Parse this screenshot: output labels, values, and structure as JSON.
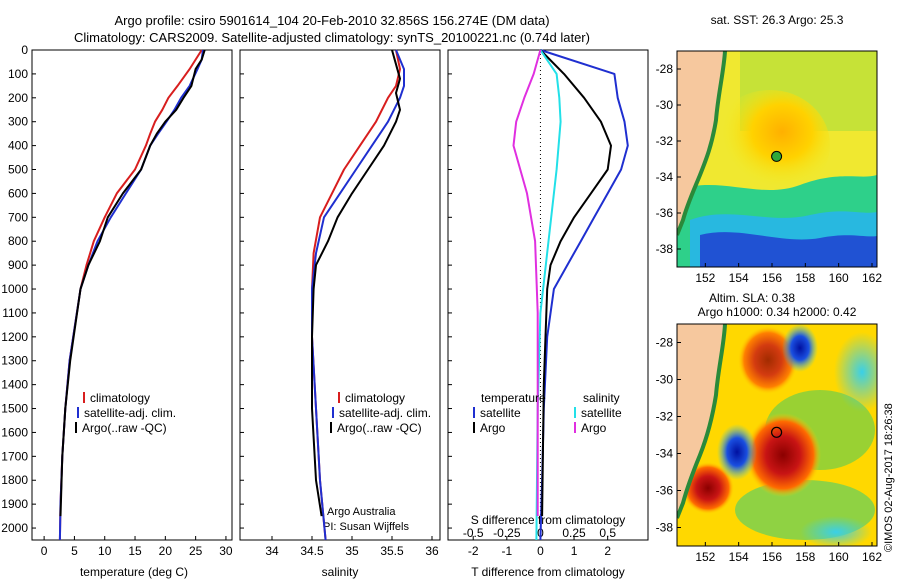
{
  "header": {
    "line1": "Argo profile: csiro 5901614_104 20-Feb-2010 32.856S 156.274E (DM data)",
    "line2": "Climatology: CARS2009. Satellite-adjusted climatology: synTS_20100221.nc (0.74d later)"
  },
  "colors": {
    "climatology": "#d81e1e",
    "satellite": "#1f2fd0",
    "argo": "#000000",
    "sal_satellite": "#22e0e8",
    "sal_argo": "#e02fe0",
    "land": "#f6c89e",
    "coast": "#2a8a3a"
  },
  "chart_data": [
    {
      "type": "line",
      "id": "temperature",
      "xlabel": "temperature (deg C)",
      "ylabel": "",
      "xlim": [
        -2,
        31
      ],
      "ylim": [
        2050,
        0
      ],
      "xticks": [
        "0",
        "5",
        "10",
        "15",
        "20",
        "25",
        "30"
      ],
      "yticks": [
        "0",
        "100",
        "200",
        "300",
        "400",
        "500",
        "600",
        "700",
        "800",
        "900",
        "1000",
        "1100",
        "1200",
        "1300",
        "1400",
        "1500",
        "1600",
        "1700",
        "1800",
        "1900",
        "2000"
      ],
      "legend": [
        "climatology",
        "satellite-adj. clim.",
        "Argo(..raw -QC)"
      ],
      "series": [
        {
          "name": "climatology",
          "x": [
            26.0,
            25.0,
            24.0,
            22.0,
            20.5,
            19.5,
            18.3,
            17.5,
            16.8,
            15.0,
            12.0,
            10.0,
            8.2,
            7.0,
            6.0,
            4.2,
            3.5,
            3.0,
            2.7,
            2.6
          ],
          "y": [
            0,
            40,
            80,
            150,
            200,
            250,
            300,
            350,
            400,
            500,
            600,
            700,
            800,
            900,
            1000,
            1300,
            1500,
            1700,
            1900,
            2050
          ]
        },
        {
          "name": "satellite-adj. clim.",
          "x": [
            26.2,
            26.0,
            25.3,
            24.0,
            22.6,
            21.5,
            20.2,
            18.8,
            17.5,
            16.0,
            13.5,
            11.0,
            8.8,
            7.3,
            6.0,
            4.2,
            3.5,
            3.0,
            2.7,
            2.6
          ],
          "y": [
            0,
            40,
            80,
            150,
            200,
            250,
            300,
            350,
            400,
            500,
            600,
            700,
            800,
            900,
            1000,
            1300,
            1500,
            1700,
            1900,
            2050
          ]
        },
        {
          "name": "Argo(..raw -QC)",
          "x": [
            26.5,
            26.0,
            25.0,
            24.3,
            23.0,
            21.8,
            20.0,
            18.6,
            17.5,
            16.0,
            13.0,
            10.5,
            9.2,
            7.3,
            6.0,
            4.3,
            3.5,
            3.0,
            2.7
          ],
          "y": [
            0,
            40,
            80,
            150,
            200,
            250,
            300,
            350,
            400,
            500,
            600,
            700,
            800,
            900,
            1000,
            1300,
            1500,
            1700,
            1950
          ]
        }
      ]
    },
    {
      "type": "line",
      "id": "salinity",
      "xlabel": "salinity",
      "xlim": [
        33.6,
        36.1
      ],
      "ylim": [
        2050,
        0
      ],
      "xticks": [
        "34",
        "34.5",
        "35",
        "35.5",
        "36"
      ],
      "legend": [
        "climatology",
        "satellite-adj. clim.",
        "Argo(..raw -QC)"
      ],
      "annotation": [
        "Argo Australia",
        "PI: Susan Wijffels"
      ],
      "series": [
        {
          "name": "climatology",
          "x": [
            35.55,
            35.6,
            35.55,
            35.45,
            35.3,
            35.1,
            34.9,
            34.75,
            34.6,
            34.52,
            34.5,
            34.5,
            34.55,
            34.6,
            34.67
          ],
          "y": [
            0,
            80,
            150,
            200,
            300,
            400,
            500,
            600,
            700,
            850,
            1000,
            1200,
            1500,
            1800,
            2050
          ]
        },
        {
          "name": "satellite-adj. clim.",
          "x": [
            35.55,
            35.65,
            35.65,
            35.6,
            35.45,
            35.25,
            35.05,
            34.85,
            34.65,
            34.55,
            34.5,
            34.5,
            34.55,
            34.6,
            34.67
          ],
          "y": [
            0,
            80,
            150,
            200,
            300,
            400,
            500,
            600,
            700,
            850,
            1000,
            1200,
            1500,
            1800,
            2050
          ]
        },
        {
          "name": "Argo(..raw -QC)",
          "x": [
            35.5,
            35.55,
            35.6,
            35.55,
            35.6,
            35.55,
            35.4,
            35.2,
            35.0,
            34.82,
            34.7,
            34.55,
            34.52,
            34.5,
            34.5,
            34.55,
            34.62
          ],
          "y": [
            0,
            60,
            120,
            180,
            250,
            300,
            400,
            500,
            600,
            700,
            800,
            900,
            1000,
            1200,
            1500,
            1800,
            1950
          ]
        }
      ]
    },
    {
      "type": "line",
      "id": "difference",
      "xlabel": "T difference from climatology",
      "xlabel_top": "S difference from climatology",
      "xlim": [
        -2.75,
        3.2
      ],
      "ylim": [
        2050,
        0
      ],
      "xticks": [
        "-2",
        "-1",
        "0",
        "1",
        "2"
      ],
      "xticks_top": [
        "-0.5",
        "-0.25",
        "0",
        "0.25",
        "0.5"
      ],
      "legend_titles": [
        "temperature",
        "salinity"
      ],
      "legend": [
        "satellite",
        "Argo",
        "satellite",
        "Argo"
      ],
      "series": [
        {
          "name": "T satellite",
          "x": [
            0,
            2.2,
            2.3,
            2.5,
            2.6,
            2.4,
            2.0,
            1.6,
            1.2,
            0.8,
            0.4,
            0.2,
            0.1,
            0.05,
            0.0
          ],
          "y": [
            0,
            100,
            200,
            300,
            400,
            500,
            600,
            700,
            800,
            900,
            1000,
            1200,
            1500,
            1800,
            2050
          ]
        },
        {
          "name": "T Argo",
          "x": [
            0,
            0.7,
            1.3,
            1.8,
            2.1,
            2.0,
            1.5,
            1.0,
            0.6,
            0.3,
            0.2,
            0.1,
            0.05
          ],
          "y": [
            0,
            100,
            200,
            300,
            400,
            500,
            600,
            700,
            800,
            900,
            1000,
            1400,
            1950
          ]
        },
        {
          "name": "S satellite",
          "x": [
            0,
            0.12,
            0.14,
            0.15,
            0.12,
            0.08,
            0.04,
            0.0,
            -0.02,
            -0.03
          ],
          "y": [
            0,
            100,
            200,
            300,
            500,
            700,
            900,
            1100,
            1500,
            2050
          ]
        },
        {
          "name": "S Argo",
          "x": [
            0,
            -0.05,
            -0.12,
            -0.18,
            -0.2,
            -0.1,
            -0.04,
            -0.02,
            -0.02
          ],
          "y": [
            0,
            100,
            200,
            300,
            400,
            600,
            800,
            1100,
            1950
          ]
        }
      ]
    },
    {
      "type": "heatmap",
      "id": "sst_map",
      "title": "sat. SST: 26.3 Argo: 25.3",
      "xticks": [
        "152",
        "154",
        "156",
        "158",
        "160",
        "162"
      ],
      "yticks": [
        "-28",
        "-30",
        "-32",
        "-34",
        "-36",
        "-38"
      ],
      "xlim": [
        150.3,
        162.3
      ],
      "ylim": [
        -39.0,
        -27.0
      ],
      "argo_position": {
        "lon": 156.274,
        "lat": -32.856
      }
    },
    {
      "type": "heatmap",
      "id": "sla_map",
      "title_line1": "Altim. SLA: 0.38",
      "title_line2": "Argo h1000: 0.34 h2000: 0.42",
      "xticks": [
        "152",
        "154",
        "156",
        "158",
        "160",
        "162"
      ],
      "yticks": [
        "-28",
        "-30",
        "-32",
        "-34",
        "-36",
        "-38"
      ],
      "xlim": [
        150.3,
        162.3
      ],
      "ylim": [
        -39.0,
        -27.0
      ],
      "argo_position": {
        "lon": 156.274,
        "lat": -32.856
      }
    }
  ],
  "footer": {
    "credit": "©IMOS 02-Aug-2017 18:26:38"
  }
}
